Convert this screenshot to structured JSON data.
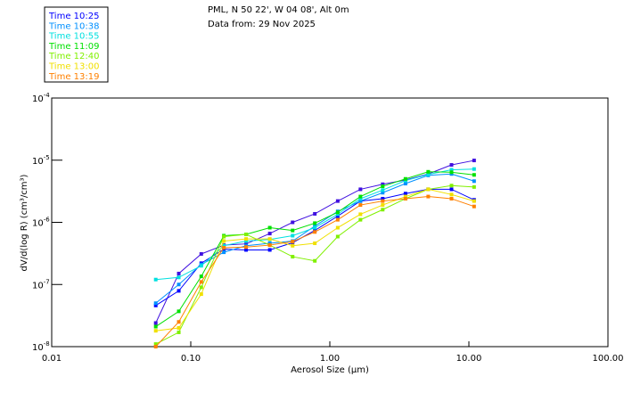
{
  "header": {
    "location": "PML, N 50 22', W 04 08', Alt 0m",
    "date_line": "Data from: 29 Nov 2025"
  },
  "chart_data": {
    "type": "line",
    "xscale": "log",
    "yscale": "log",
    "xlabel": "Aerosol Size (µm)",
    "ylabel": "dV/d(log R) (cm³/cm³)",
    "xlim": [
      0.01,
      100
    ],
    "ylim": [
      1e-08,
      0.0001
    ],
    "x_ticks": [
      {
        "value": 0.01,
        "label": "0.01"
      },
      {
        "value": 0.1,
        "label": "0.10"
      },
      {
        "value": 1,
        "label": "1.00"
      },
      {
        "value": 10,
        "label": "10.00"
      },
      {
        "value": 100,
        "label": "100.00"
      }
    ],
    "y_ticks": [
      {
        "value": 0.0001,
        "base": "10",
        "exp": "-4"
      },
      {
        "value": 1e-05,
        "base": "10",
        "exp": "-5"
      },
      {
        "value": 1e-06,
        "base": "10",
        "exp": "-6"
      },
      {
        "value": 1e-07,
        "base": "10",
        "exp": "-7"
      },
      {
        "value": 1e-08,
        "base": "10",
        "exp": "-8"
      }
    ],
    "grid": false,
    "legend_position": "top-left",
    "x": [
      0.056,
      0.082,
      0.119,
      0.173,
      0.25,
      0.37,
      0.54,
      0.78,
      1.14,
      1.66,
      2.4,
      3.5,
      5.1,
      7.5,
      10.9
    ],
    "series": [
      {
        "name": "",
        "color": "#4010e0",
        "values": [
          2.4e-08,
          1.5e-07,
          3.1e-07,
          4.3e-07,
          4.5e-07,
          6.6e-07,
          1e-06,
          1.37e-06,
          2.2e-06,
          3.4e-06,
          4.1e-06,
          4.8e-06,
          6e-06,
          8.4e-06,
          9.9e-06
        ]
      },
      {
        "name": "Time 10:25",
        "color": "#0000ff",
        "values": [
          4.6e-08,
          7.9e-08,
          2.2e-07,
          3.7e-07,
          3.6e-07,
          3.6e-07,
          4.7e-07,
          7.4e-07,
          1.26e-06,
          2.2e-06,
          2.4e-06,
          2.9e-06,
          3.4e-06,
          3.4e-06,
          2.3e-06
        ]
      },
      {
        "name": "Time 10:38",
        "color": "#0090ff",
        "values": [
          5e-08,
          1e-07,
          2.1e-07,
          3.3e-07,
          4.2e-07,
          4.6e-07,
          5e-07,
          8.7e-07,
          1.5e-06,
          2.2e-06,
          3e-06,
          4.2e-06,
          5.7e-06,
          6e-06,
          4.6e-06
        ]
      },
      {
        "name": "Time 10:55",
        "color": "#00e0e0",
        "values": [
          1.2e-07,
          1.3e-07,
          2e-07,
          4.2e-07,
          5e-07,
          5.3e-07,
          6.1e-07,
          8.2e-07,
          1.35e-06,
          2.4e-06,
          3.3e-06,
          4.7e-06,
          5.9e-06,
          7e-06,
          7.2e-06
        ]
      },
      {
        "name": "Time 11:09",
        "color": "#00e000",
        "values": [
          2.1e-08,
          3.7e-08,
          1.35e-07,
          6.1e-07,
          6.4e-07,
          8.2e-07,
          7.4e-07,
          9.7e-07,
          1.45e-06,
          2.6e-06,
          3.8e-06,
          5e-06,
          6.5e-06,
          6.4e-06,
          5.8e-06
        ]
      },
      {
        "name": "Time 12:40",
        "color": "#80f000",
        "values": [
          1.1e-08,
          1.7e-08,
          9e-08,
          5.9e-07,
          6.4e-07,
          4.3e-07,
          2.8e-07,
          2.4e-07,
          5.9e-07,
          1.1e-06,
          1.6e-06,
          2.4e-06,
          3.4e-06,
          3.9e-06,
          3.7e-06
        ]
      },
      {
        "name": "Time 13:00",
        "color": "#f0e000",
        "values": [
          1.8e-08,
          2e-08,
          7e-08,
          5e-07,
          5.4e-07,
          5.4e-07,
          4.2e-07,
          4.6e-07,
          8.2e-07,
          1.35e-06,
          1.9e-06,
          2.6e-06,
          3.4e-06,
          2.8e-06,
          2.2e-06
        ]
      },
      {
        "name": "Time 13:19",
        "color": "#ff8000",
        "values": [
          1e-08,
          2.5e-08,
          1.1e-07,
          3.9e-07,
          4e-07,
          4.3e-07,
          4.9e-07,
          7e-07,
          1.1e-06,
          1.9e-06,
          2.2e-06,
          2.4e-06,
          2.6e-06,
          2.4e-06,
          1.8e-06
        ]
      }
    ]
  }
}
